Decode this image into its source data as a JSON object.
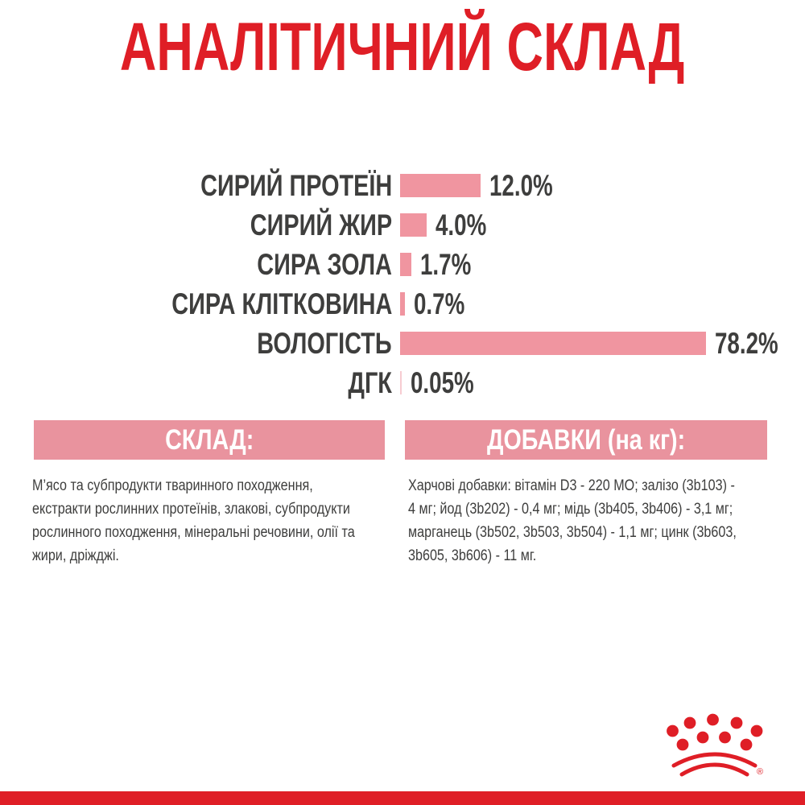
{
  "title": "АНАЛІТИЧНИЙ СКЛАД",
  "colors": {
    "brand_red": "#df1e26",
    "bar_pink": "#f095a0",
    "bar_pink_light": "#f7ccd1",
    "band_pink": "#e9939e",
    "text_dark": "#3e3e3d",
    "white": "#ffffff"
  },
  "chart_data": {
    "type": "bar",
    "orientation": "horizontal",
    "title": "АНАЛІТИЧНИЙ СКЛАД",
    "categories": [
      "СИРИЙ ПРОТЕЇН",
      "СИРИЙ ЖИР",
      "СИРА ЗОЛА",
      "СИРА КЛІТКОВИНА",
      "ВОЛОГІСТЬ",
      "ДГК"
    ],
    "values": [
      12.0,
      4.0,
      1.7,
      0.7,
      78.2,
      0.05
    ],
    "value_labels": [
      "12.0%",
      "4.0%",
      "1.7%",
      "0.7%",
      "78.2%",
      "0.05%"
    ],
    "xlabel": "",
    "ylabel": "",
    "grid": false,
    "legend": false,
    "bar_color": "#f095a0",
    "note": "bar lengths drawn ~8.3px per percent, capped at 380px (78.2% bar truncated)"
  },
  "sections": {
    "composition": {
      "header": "СКЛАД:",
      "body": "М’ясо та субпродукти тваринного походження,\nекстракти рослинних протеїнів, злакові, субпродукти\nрослинного походження, мінеральні речовини, олії та\nжири, дріжджі."
    },
    "additives": {
      "header": "ДОБАВКИ (на кг):",
      "body": "Харчові добавки: вітамін D3 - 220 МО; залізо (3b103) -\n4 мг; йод (3b202) - 0,4 мг; мідь (3b405, 3b406) - 3,1 мг;\nмарганець (3b502, 3b503, 3b504) - 1,1 мг; цинк (3b603,\n3b605, 3b606) - 11 мг."
    }
  },
  "footer": {
    "registered_mark": "®"
  }
}
